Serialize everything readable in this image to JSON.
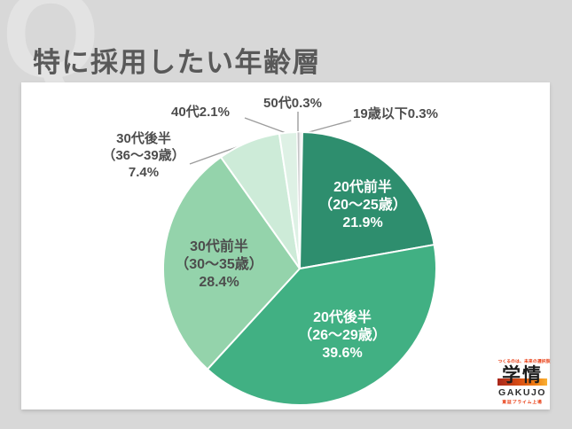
{
  "page": {
    "title": "特に採用したい年齢層",
    "watermark_letter": "Q"
  },
  "chart_data": {
    "type": "pie",
    "title": "特に採用したい年齢層",
    "unit": "%",
    "direction": "clockwise",
    "start_angle": "12-o'clock",
    "legend": "none",
    "slices": [
      {
        "key": "under-19",
        "label": "19歳以下",
        "range": "",
        "value": 0.3,
        "percent_text": "0.3%",
        "color": "#eaeaea",
        "label_position": "outside"
      },
      {
        "key": "early-20s",
        "label": "20代前半",
        "range": "（20〜25歳）",
        "value": 21.9,
        "percent_text": "21.9%",
        "color": "#2e8e6e",
        "label_position": "inside"
      },
      {
        "key": "late-20s",
        "label": "20代後半",
        "range": "（26〜29歳）",
        "value": 39.6,
        "percent_text": "39.6%",
        "color": "#41b083",
        "label_position": "inside"
      },
      {
        "key": "early-30s",
        "label": "30代前半",
        "range": "（30〜35歳）",
        "value": 28.4,
        "percent_text": "28.4%",
        "color": "#94d3ab",
        "label_position": "inside"
      },
      {
        "key": "late-30s",
        "label": "30代後半",
        "range": "（36〜39歳）",
        "value": 7.4,
        "percent_text": "7.4%",
        "color": "#cdebd8",
        "label_position": "outside"
      },
      {
        "key": "40s",
        "label": "40代",
        "range": "",
        "value": 2.1,
        "percent_text": "2.1%",
        "color": "#def1e5",
        "label_position": "outside"
      },
      {
        "key": "50s",
        "label": "50代",
        "range": "",
        "value": 0.3,
        "percent_text": "0.3%",
        "color": "#c4c4c6",
        "label_position": "outside"
      }
    ]
  },
  "logo": {
    "tagline": "つくるのは、未来の選択肢",
    "brand_jp": "学情",
    "brand_en": "GAKUJO",
    "listing": "東証プライム上場"
  },
  "colors": {
    "background": "#d8d8d8",
    "card": "#ffffff",
    "title_text": "#595959",
    "label_text": "#4d4d4d",
    "leader_line": "#9d9d9d",
    "logo_accent": "#e8380d"
  }
}
